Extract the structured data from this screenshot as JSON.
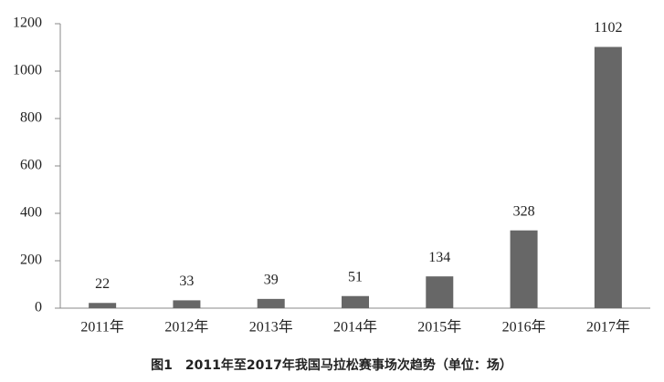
{
  "chart_data": {
    "type": "bar",
    "title": "图1　2011年至2017年我国马拉松赛事场次趋势（单位：场）",
    "categories": [
      "2011年",
      "2012年",
      "2013年",
      "2014年",
      "2015年",
      "2016年",
      "2017年"
    ],
    "values": [
      22,
      33,
      39,
      51,
      134,
      328,
      1102
    ],
    "color": "#676767",
    "ylim": [
      0,
      1200
    ],
    "yticks": [
      0,
      200,
      400,
      600,
      800,
      1000,
      1200
    ],
    "grid": false
  }
}
